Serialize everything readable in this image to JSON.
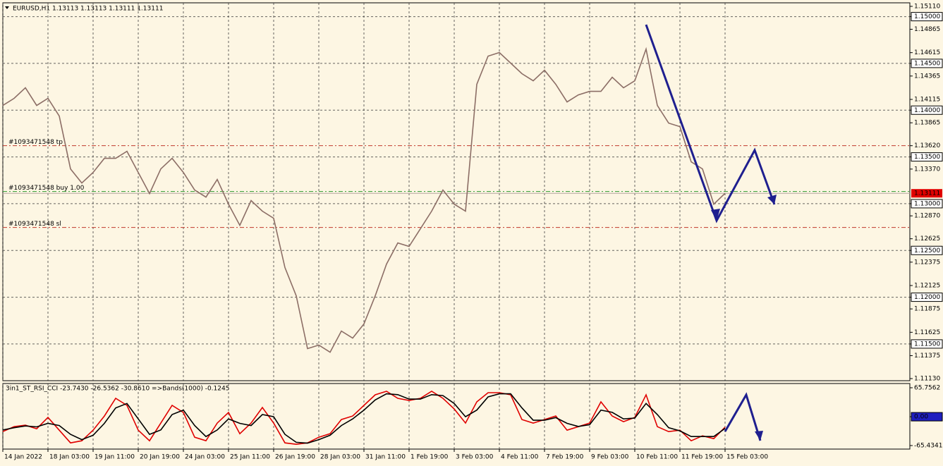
{
  "chart_data": [
    {
      "type": "line",
      "title": "EURUSD,H1  1.13113 1.13113 1.13111 1.13111",
      "color": "#8c6e66",
      "categories": [
        "14 Jan 2022",
        null,
        null,
        null,
        "18 Jan 03:00",
        null,
        null,
        null,
        "19 Jan 11:00",
        null,
        null,
        null,
        "20 Jan 19:00",
        null,
        null,
        null,
        "24 Jan 03:00",
        null,
        null,
        null,
        "25 Jan 11:00",
        null,
        null,
        null,
        "26 Jan 19:00",
        null,
        null,
        null,
        "28 Jan 03:00",
        null,
        null,
        null,
        "31 Jan 11:00",
        null,
        null,
        null,
        "1 Feb 19:00",
        null,
        null,
        null,
        "3 Feb 03:00",
        null,
        null,
        null,
        "4 Feb 11:00",
        null,
        null,
        null,
        "7 Feb 19:00",
        null,
        null,
        null,
        "9 Feb 03:00",
        null,
        null,
        null,
        "10 Feb 11:00",
        null,
        null,
        null,
        "11 Feb 19:00",
        null,
        null,
        null,
        "15 Feb 03:00"
      ],
      "values": [
        1.1405,
        1.14126,
        1.14239,
        1.1405,
        1.14126,
        1.13937,
        1.13372,
        1.13221,
        1.13334,
        1.13485,
        1.13485,
        1.1356,
        1.13334,
        1.13108,
        1.13372,
        1.13485,
        1.13334,
        1.13146,
        1.1307,
        1.13259,
        1.12995,
        1.12769,
        1.13033,
        1.1292,
        1.12844,
        1.12317,
        1.12015,
        1.1145,
        1.11488,
        1.11412,
        1.11638,
        1.11563,
        1.11714,
        1.12015,
        1.12354,
        1.1258,
        1.12543,
        1.12731,
        1.1292,
        1.13146,
        1.12995,
        1.1292,
        1.14276,
        1.14578,
        1.14616,
        1.14503,
        1.1439,
        1.14314,
        1.14427,
        1.14276,
        1.14088,
        1.14163,
        1.14201,
        1.14201,
        1.14352,
        1.14239,
        1.14314,
        1.14653,
        1.1405,
        1.13862,
        1.13824,
        1.13447,
        1.13372,
        1.12995,
        1.13111
      ],
      "ylim": [
        1.1113,
        1.1511
      ],
      "yticks": [
        {
          "value": 1.1511,
          "label": "1.15110"
        },
        {
          "value": 1.15,
          "label": "1.15000"
        },
        1.14865,
        1.14615,
        {
          "value": 1.145,
          "label": "1.14500"
        },
        1.14365,
        1.14115,
        {
          "value": 1.14,
          "label": "1.14000"
        },
        1.13865,
        {
          "value": 1.1362,
          "label": "1.13620"
        },
        {
          "value": 1.135,
          "label": "1.13500"
        },
        {
          "value": 1.1337,
          "label": "1.13370"
        },
        {
          "value": 1.13,
          "label": "1.13000"
        },
        {
          "value": 1.1287,
          "label": "1.12870"
        },
        1.12625,
        {
          "value": 1.125,
          "label": "1.12500"
        },
        1.12375,
        1.12125,
        {
          "value": 1.12,
          "label": "1.12000"
        },
        1.11875,
        1.11625,
        {
          "value": 1.115,
          "label": "1.11500"
        },
        1.11375,
        {
          "value": 1.1113,
          "label": "1.11130"
        }
      ],
      "last_price": 1.13111,
      "order_lines": [
        {
          "label": "#1093471548 tp",
          "value": 1.1362,
          "color": "#c0392b"
        },
        {
          "label": "#1093471548 buy 1.00",
          "value": 1.1313,
          "color": "#2e9a2e"
        },
        {
          "label": "#1093471548 sl",
          "value": 1.12746,
          "color": "#c0392b"
        }
      ],
      "grid": true
    },
    {
      "type": "line",
      "title": "3in1_ST_RSI_CCI -23.7430 -26.5362 -30.8610 =>Bands(1000) -0.1245",
      "series": [
        {
          "color": "#e00000",
          "values": [
            -33.7,
            -22.5,
            -19.2,
            -27.3,
            -1.6,
            -30.5,
            -59.3,
            -54.5,
            -30.5,
            1.6,
            41.7,
            25.7,
            -30.5,
            -54.5,
            -14.4,
            25.7,
            9.6,
            -46.5,
            -54.5,
            -14.4,
            9.6,
            -38.5,
            -14.4,
            20.9,
            -14.4,
            -59.3,
            -62.6,
            -59.3,
            -46.5,
            -38.5,
            -6.4,
            1.6,
            25.7,
            49.7,
            57.7,
            41.7,
            36.9,
            41.7,
            57.7,
            41.7,
            17.6,
            -14.4,
            33.7,
            54.5,
            54.5,
            49.7,
            -6.4,
            -14.4,
            -6.4,
            1.6,
            -30.5,
            -22.5,
            -14.4,
            33.7,
            1.6,
            -11.2,
            -1.6,
            49.7,
            -22.5,
            -33.7,
            -30.5,
            -54.5,
            -43.3,
            -49.7,
            -23.743
          ]
        },
        {
          "color": "#000000",
          "values": [
            -30,
            -25,
            -21,
            -23,
            -15,
            -20,
            -40,
            -52,
            -42,
            -15,
            20,
            30,
            -5,
            -40,
            -30,
            5,
            15,
            -20,
            -45,
            -30,
            -5,
            -15,
            -20,
            5,
            0,
            -40,
            -58,
            -60,
            -52,
            -42,
            -20,
            -5,
            15,
            38,
            52,
            50,
            40,
            40,
            50,
            48,
            30,
            0,
            15,
            45,
            52,
            52,
            20,
            -8,
            -8,
            -2,
            -15,
            -22,
            -18,
            15,
            10,
            -5,
            -3,
            30,
            5,
            -25,
            -32,
            -45,
            -45,
            -45,
            -26.5362
          ]
        }
      ],
      "ylim": [
        -65.4341,
        65.7562
      ],
      "yticks": [
        65.7562,
        {
          "value": 0,
          "label": "0.00"
        },
        -65.4341
      ]
    }
  ]
}
